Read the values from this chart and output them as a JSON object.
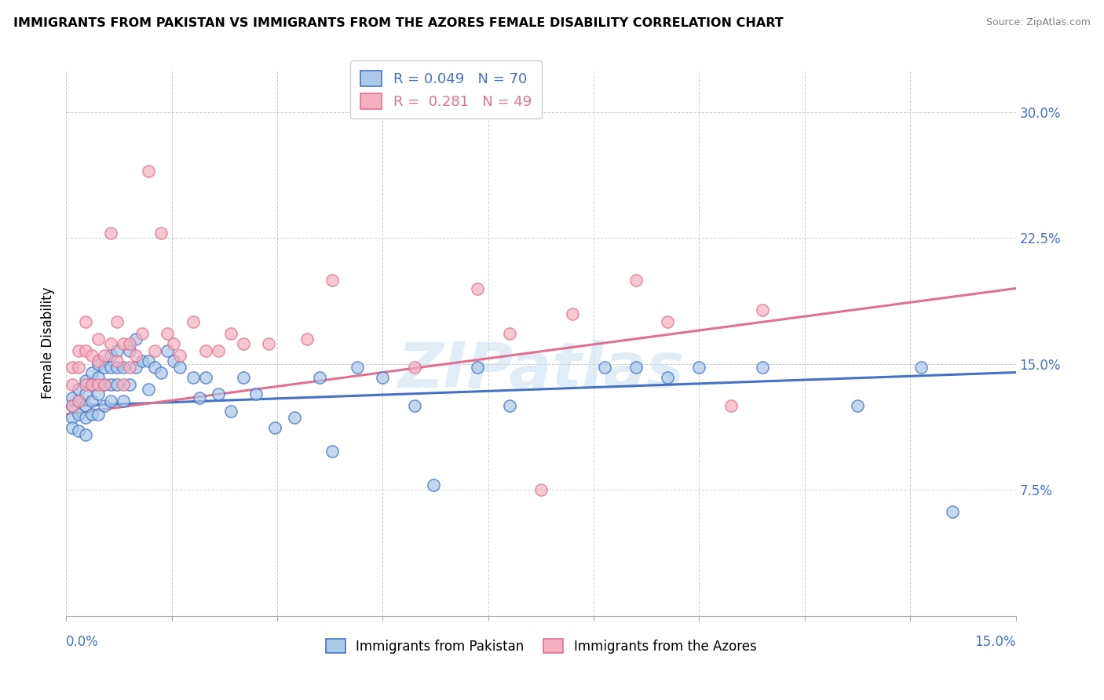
{
  "title": "IMMIGRANTS FROM PAKISTAN VS IMMIGRANTS FROM THE AZORES FEMALE DISABILITY CORRELATION CHART",
  "source": "Source: ZipAtlas.com",
  "ylabel": "Female Disability",
  "x_min": 0.0,
  "x_max": 0.15,
  "y_min": 0.0,
  "y_max": 0.325,
  "y_ticks": [
    0.075,
    0.15,
    0.225,
    0.3
  ],
  "y_tick_labels": [
    "7.5%",
    "15.0%",
    "22.5%",
    "30.0%"
  ],
  "pakistan_color": "#aac8e8",
  "pakistan_line_color": "#4472c4",
  "azores_color": "#f4b0c0",
  "azores_line_color": "#e07090",
  "R_pakistan": 0.049,
  "N_pakistan": 70,
  "R_azores": 0.281,
  "N_azores": 49,
  "legend_label_pakistan": "Immigrants from Pakistan",
  "legend_label_azores": "Immigrants from the Azores",
  "watermark": "ZIPatlas",
  "pakistan_x": [
    0.001,
    0.001,
    0.001,
    0.001,
    0.002,
    0.002,
    0.002,
    0.002,
    0.003,
    0.003,
    0.003,
    0.003,
    0.003,
    0.004,
    0.004,
    0.004,
    0.004,
    0.005,
    0.005,
    0.005,
    0.005,
    0.006,
    0.006,
    0.006,
    0.007,
    0.007,
    0.007,
    0.007,
    0.008,
    0.008,
    0.008,
    0.009,
    0.009,
    0.01,
    0.01,
    0.011,
    0.011,
    0.012,
    0.013,
    0.013,
    0.014,
    0.015,
    0.016,
    0.017,
    0.018,
    0.02,
    0.021,
    0.022,
    0.024,
    0.026,
    0.028,
    0.03,
    0.033,
    0.036,
    0.04,
    0.042,
    0.046,
    0.05,
    0.055,
    0.058,
    0.065,
    0.07,
    0.085,
    0.09,
    0.095,
    0.1,
    0.11,
    0.125,
    0.135,
    0.14
  ],
  "pakistan_y": [
    0.13,
    0.125,
    0.118,
    0.112,
    0.135,
    0.128,
    0.12,
    0.11,
    0.14,
    0.132,
    0.125,
    0.118,
    0.108,
    0.145,
    0.138,
    0.128,
    0.12,
    0.15,
    0.142,
    0.132,
    0.12,
    0.148,
    0.138,
    0.125,
    0.155,
    0.148,
    0.138,
    0.128,
    0.158,
    0.148,
    0.138,
    0.148,
    0.128,
    0.158,
    0.138,
    0.165,
    0.148,
    0.152,
    0.152,
    0.135,
    0.148,
    0.145,
    0.158,
    0.152,
    0.148,
    0.142,
    0.13,
    0.142,
    0.132,
    0.122,
    0.142,
    0.132,
    0.112,
    0.118,
    0.142,
    0.098,
    0.148,
    0.142,
    0.125,
    0.078,
    0.148,
    0.125,
    0.148,
    0.148,
    0.142,
    0.148,
    0.148,
    0.125,
    0.148,
    0.062
  ],
  "azores_x": [
    0.001,
    0.001,
    0.001,
    0.002,
    0.002,
    0.002,
    0.003,
    0.003,
    0.003,
    0.004,
    0.004,
    0.005,
    0.005,
    0.005,
    0.006,
    0.006,
    0.007,
    0.007,
    0.008,
    0.008,
    0.009,
    0.009,
    0.01,
    0.01,
    0.011,
    0.012,
    0.013,
    0.014,
    0.015,
    0.016,
    0.017,
    0.018,
    0.02,
    0.022,
    0.024,
    0.026,
    0.028,
    0.032,
    0.038,
    0.042,
    0.055,
    0.065,
    0.07,
    0.075,
    0.08,
    0.09,
    0.095,
    0.105,
    0.11
  ],
  "azores_y": [
    0.148,
    0.138,
    0.125,
    0.158,
    0.148,
    0.128,
    0.175,
    0.158,
    0.138,
    0.155,
    0.138,
    0.165,
    0.152,
    0.138,
    0.155,
    0.138,
    0.228,
    0.162,
    0.175,
    0.152,
    0.162,
    0.138,
    0.162,
    0.148,
    0.155,
    0.168,
    0.265,
    0.158,
    0.228,
    0.168,
    0.162,
    0.155,
    0.175,
    0.158,
    0.158,
    0.168,
    0.162,
    0.162,
    0.165,
    0.2,
    0.148,
    0.195,
    0.168,
    0.075,
    0.18,
    0.2,
    0.175,
    0.125,
    0.182
  ]
}
